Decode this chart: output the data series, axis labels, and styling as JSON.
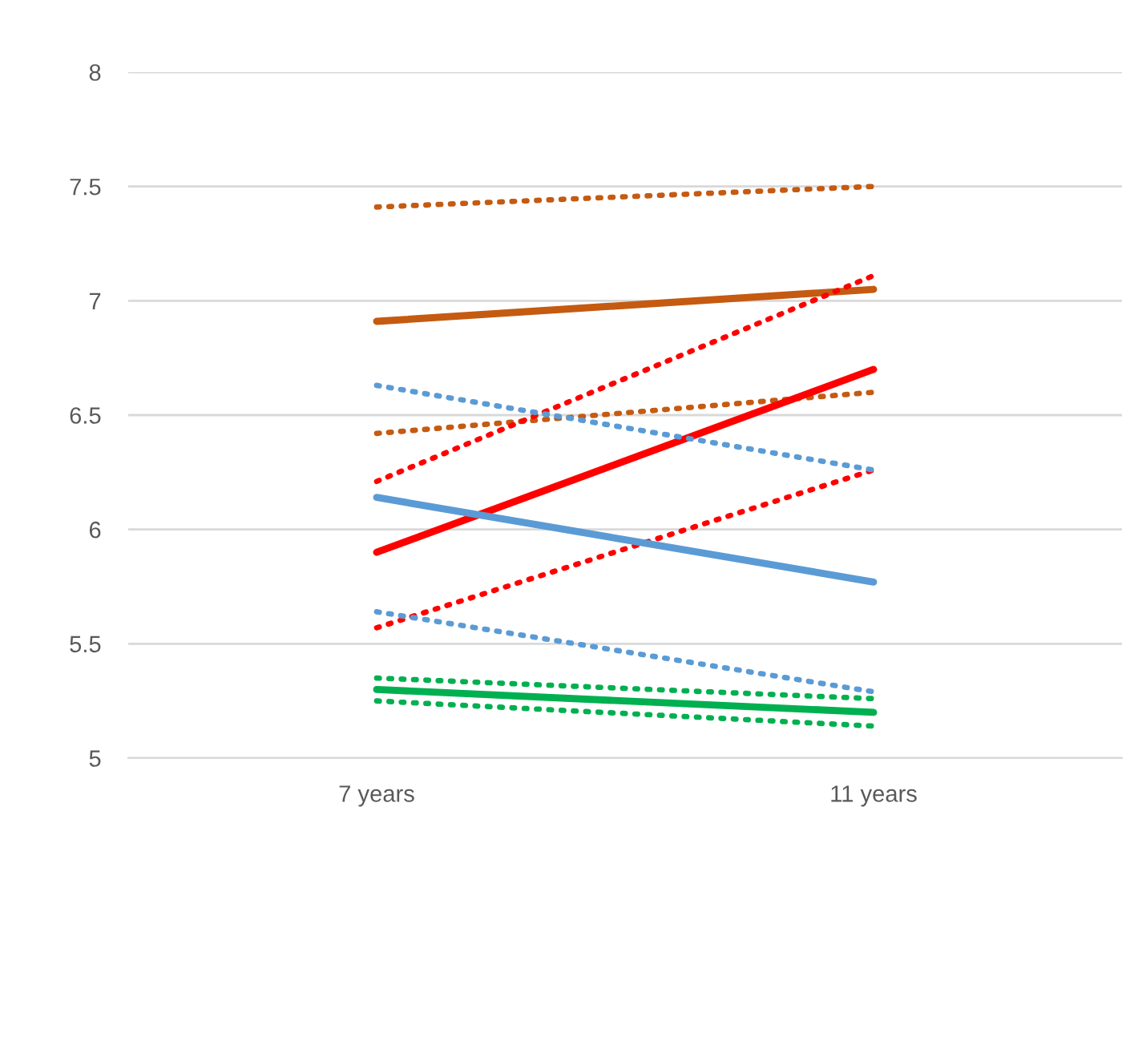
{
  "chart_data": {
    "type": "line",
    "categories": [
      "7 years",
      "11 years"
    ],
    "ylim": [
      5,
      8
    ],
    "yticks": [
      5,
      5.5,
      6,
      6.5,
      7,
      7.5,
      8
    ],
    "grid": "y",
    "marker": "none",
    "series": [
      {
        "color": "#c55a11",
        "line_style": "dotted",
        "values": [
          7.41,
          7.5
        ]
      },
      {
        "color": "#c55a11",
        "line_style": "solid",
        "values": [
          6.91,
          7.05
        ]
      },
      {
        "color": "#c55a11",
        "line_style": "dotted",
        "values": [
          6.42,
          6.6
        ]
      },
      {
        "color": "#ff0000",
        "line_style": "dotted",
        "values": [
          6.21,
          7.11
        ]
      },
      {
        "color": "#ff0000",
        "line_style": "solid",
        "values": [
          5.9,
          6.7
        ]
      },
      {
        "color": "#ff0000",
        "line_style": "dotted",
        "values": [
          5.57,
          6.26
        ]
      },
      {
        "color": "#5b9bd5",
        "line_style": "dotted",
        "values": [
          6.63,
          6.26
        ]
      },
      {
        "color": "#5b9bd5",
        "line_style": "solid",
        "values": [
          6.14,
          5.77
        ]
      },
      {
        "color": "#5b9bd5",
        "line_style": "dotted",
        "values": [
          5.64,
          5.29
        ]
      },
      {
        "color": "#00b050",
        "line_style": "dotted",
        "values": [
          5.35,
          5.26
        ]
      },
      {
        "color": "#00b050",
        "line_style": "solid",
        "values": [
          5.3,
          5.2
        ]
      },
      {
        "color": "#00b050",
        "line_style": "dotted",
        "values": [
          5.25,
          5.14
        ]
      }
    ]
  }
}
